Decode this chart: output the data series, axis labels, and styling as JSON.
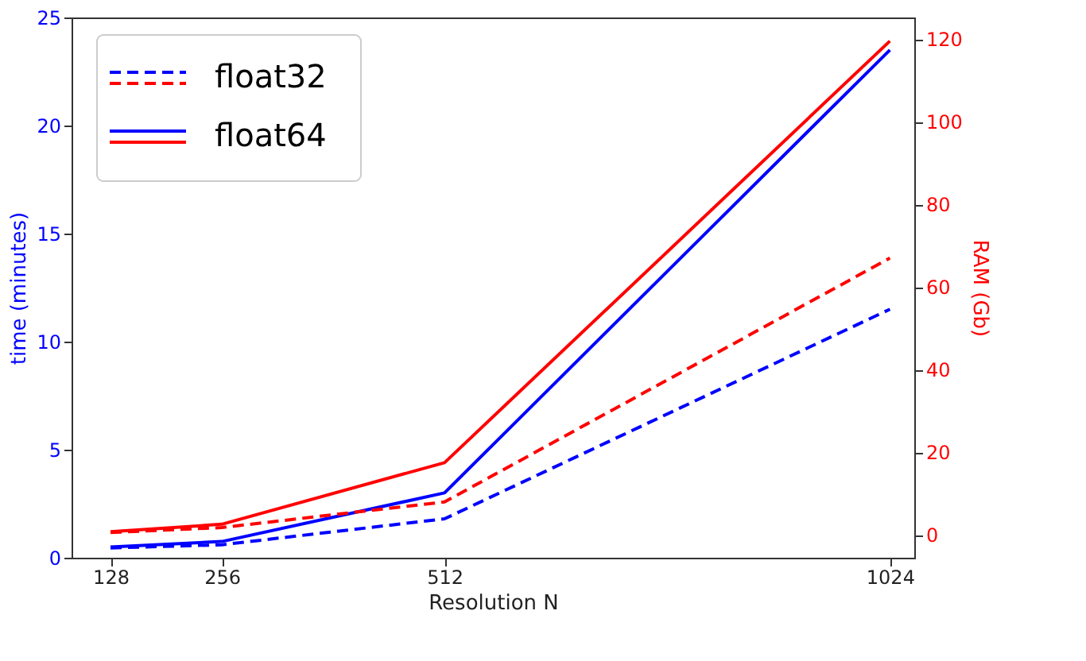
{
  "chart_data": {
    "type": "line",
    "xlabel": "Resolution N",
    "ylabel": "time (minutes)",
    "y2label": "RAM (Gb)",
    "x": [
      128,
      256,
      512,
      1024
    ],
    "xlim": [
      83.2,
      1052
    ],
    "xticks": [
      128,
      256,
      512,
      {
        "value": 1024,
        "label": "1024"
      }
    ],
    "ylim": [
      0,
      25
    ],
    "yticks": [
      0,
      5,
      10,
      15,
      20,
      25
    ],
    "y2lim": [
      -5.5,
      125.2
    ],
    "y2ticks": [
      0,
      20,
      40,
      60,
      80,
      100,
      120
    ],
    "series": [
      {
        "name": "float32",
        "color": "#0000ff",
        "line_style": "dashed",
        "values": [
          0.45,
          0.6,
          1.8,
          11.5
        ]
      },
      {
        "color": "#ff0000",
        "line_style": "dashed",
        "axis": "y2",
        "values": [
          0.6,
          1.8,
          8,
          67
        ]
      },
      {
        "name": "float64",
        "color": "#0000ff",
        "line_style": "solid",
        "values": [
          0.5,
          0.75,
          3.0,
          23.5
        ]
      },
      {
        "color": "#ff0000",
        "line_style": "solid",
        "axis": "y2",
        "values": [
          0.8,
          2.6,
          17.5,
          119.5
        ]
      }
    ],
    "legend": "top left",
    "grid": false
  }
}
